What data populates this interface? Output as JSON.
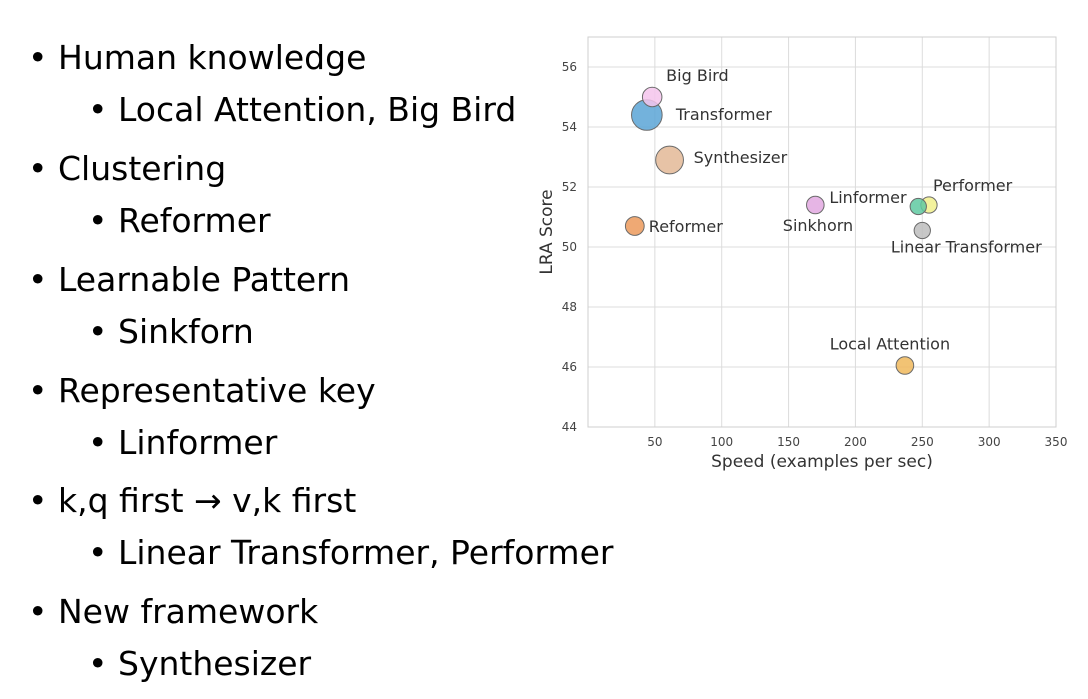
{
  "bullets": [
    {
      "level": 1,
      "text": "Human knowledge"
    },
    {
      "level": 2,
      "text": "Local Attention, Big Bird"
    },
    {
      "level": 1,
      "text": "Clustering"
    },
    {
      "level": 2,
      "text": "Reformer"
    },
    {
      "level": 1,
      "text": "Learnable Pattern"
    },
    {
      "level": 2,
      "text": "Sinkforn"
    },
    {
      "level": 1,
      "text": "Representative key"
    },
    {
      "level": 2,
      "text": "Linformer"
    },
    {
      "level": 1,
      "text": "k,q first → v,k first"
    },
    {
      "level": 2,
      "text": "Linear Transformer, Performer"
    },
    {
      "level": 1,
      "text": "New framework"
    },
    {
      "level": 2,
      "text": "Synthesizer"
    }
  ],
  "bullet_glyph": "•",
  "chart_data": {
    "type": "scatter",
    "title": "",
    "xlabel": "Speed (examples per sec)",
    "ylabel": "LRA Score",
    "xlim": [
      0,
      350
    ],
    "ylim": [
      44,
      57
    ],
    "xticks": [
      50,
      100,
      150,
      200,
      250,
      300,
      350
    ],
    "yticks": [
      44,
      46,
      48,
      50,
      52,
      54,
      56
    ],
    "grid": true,
    "points": [
      {
        "label": "Big Bird",
        "x": 48,
        "y": 55.0,
        "size": 1.2,
        "color": "#f4c4ec"
      },
      {
        "label": "Transformer",
        "x": 44,
        "y": 54.4,
        "size": 3.2,
        "color": "#5ba4d6"
      },
      {
        "label": "Synthesizer",
        "x": 61,
        "y": 52.9,
        "size": 2.6,
        "color": "#e3b896"
      },
      {
        "label": "Reformer",
        "x": 35,
        "y": 50.7,
        "size": 1.1,
        "color": "#ec9a5c"
      },
      {
        "label": "Linformer",
        "x": 170,
        "y": 51.4,
        "size": 0.95,
        "color": "#e2a8e0"
      },
      {
        "label": "Performer",
        "x": 255,
        "y": 51.4,
        "size": 0.8,
        "color": "#f1f08c"
      },
      {
        "label": "",
        "x": 247,
        "y": 51.35,
        "size": 0.8,
        "color": "#5fc9a1"
      },
      {
        "label": "Linear Transformer",
        "x": 250,
        "y": 50.55,
        "size": 0.8,
        "color": "#bdbdbd"
      },
      {
        "label": "Local Attention",
        "x": 237,
        "y": 46.05,
        "size": 0.95,
        "color": "#f0b95c"
      }
    ],
    "annotations": [
      {
        "text": "Sinkhorn",
        "x": 172,
        "y": 50.7
      }
    ]
  }
}
